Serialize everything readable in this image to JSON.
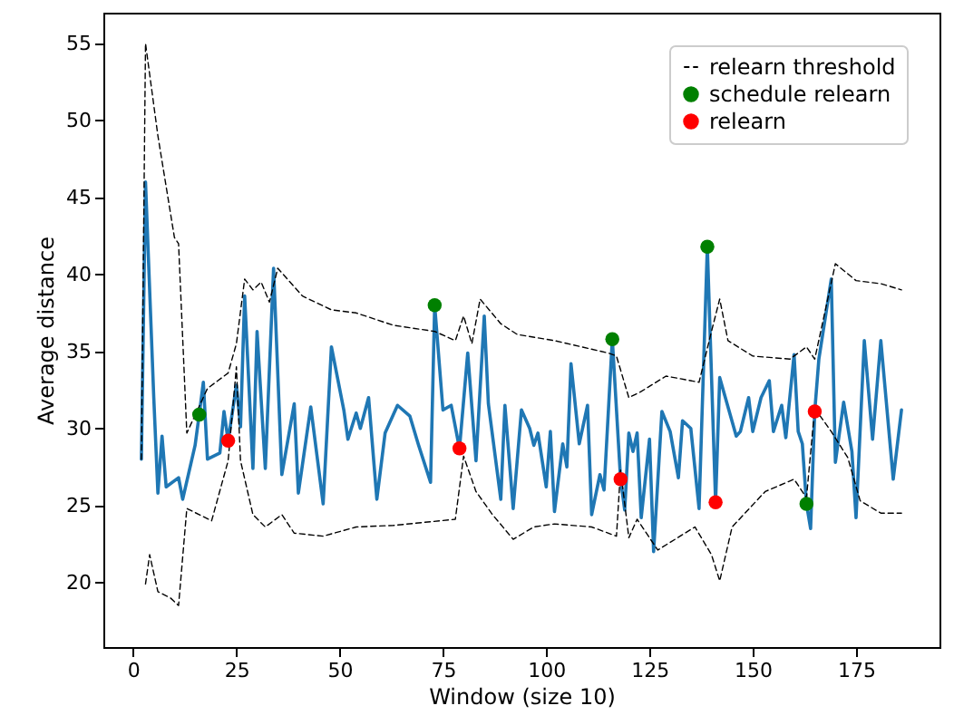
{
  "chart_data": {
    "type": "line",
    "xlabel": "Window (size 10)",
    "ylabel": "Average distance",
    "xlim": [
      -7.2,
      195.2
    ],
    "ylim": [
      15.8,
      57.0
    ],
    "xticks": [
      0,
      25,
      50,
      75,
      100,
      125,
      150,
      175
    ],
    "yticks": [
      20,
      25,
      30,
      35,
      40,
      45,
      50,
      55
    ],
    "grid": false,
    "legend": "top right",
    "series": [
      {
        "color": "#1f77b4",
        "line_style": "solid",
        "x": [
          2,
          3,
          5,
          6,
          7,
          8,
          11,
          12,
          15,
          16,
          17,
          18,
          21,
          22,
          23,
          25,
          26,
          27,
          29,
          30,
          32,
          34,
          36,
          39,
          40,
          43,
          46,
          48,
          51,
          52,
          54,
          55,
          57,
          59,
          61,
          64,
          67,
          69,
          72,
          73,
          75,
          77,
          79,
          81,
          83,
          85,
          86,
          89,
          90,
          92,
          94,
          96,
          97,
          98,
          100,
          101,
          102,
          104,
          105,
          106,
          108,
          110,
          111,
          113,
          114,
          116,
          118,
          119,
          120,
          121,
          122,
          123,
          125,
          126,
          128,
          130,
          132,
          133,
          135,
          137,
          139,
          141,
          142,
          144,
          146,
          147,
          149,
          150,
          152,
          154,
          155,
          157,
          158,
          160,
          161,
          162,
          163,
          164,
          165,
          166,
          169,
          170,
          172,
          174,
          175,
          177,
          179,
          181,
          184,
          186
        ],
        "values": [
          28,
          46,
          32,
          25.8,
          29.5,
          26.2,
          26.8,
          25.4,
          28.9,
          30.9,
          33.0,
          28.0,
          28.4,
          31.1,
          29.2,
          32.8,
          30.1,
          38.6,
          27.4,
          36.3,
          27.4,
          40.4,
          27.0,
          31.6,
          25.8,
          31.4,
          25.1,
          35.3,
          31.2,
          29.3,
          31.0,
          30.0,
          32.0,
          25.4,
          29.7,
          31.5,
          30.8,
          29.0,
          26.5,
          38.0,
          31.2,
          31.5,
          28.7,
          34.9,
          27.9,
          37.3,
          31.6,
          25.4,
          31.5,
          24.8,
          31.2,
          30.0,
          28.9,
          29.7,
          26.2,
          29.8,
          24.6,
          29.0,
          27.5,
          34.2,
          29.0,
          31.5,
          24.4,
          27.0,
          26.0,
          35.8,
          26.7,
          24.7,
          29.7,
          28.5,
          29.7,
          24.2,
          29.3,
          22.0,
          31.1,
          29.8,
          26.8,
          30.5,
          30.0,
          24.8,
          41.8,
          25.2,
          33.3,
          31.4,
          29.5,
          29.8,
          32.0,
          29.8,
          32.0,
          33.1,
          29.8,
          31.5,
          29.4,
          34.8,
          29.8,
          29.0,
          25.1,
          23.5,
          31.1,
          34.5,
          39.7,
          27.8,
          31.7,
          28.5,
          24.2,
          35.7,
          29.3,
          35.7,
          26.7,
          31.2
        ]
      },
      {
        "name": "relearn threshold",
        "color": "#000000",
        "line_style": "dashed",
        "x": [
          2,
          3,
          6,
          10,
          11,
          13,
          18,
          23,
          25,
          27,
          29,
          31,
          33,
          35,
          41,
          48,
          54,
          63,
          73,
          78,
          80,
          82,
          84,
          89,
          93,
          102,
          115,
          117,
          120,
          123,
          129,
          137,
          140,
          142,
          144,
          150,
          159,
          163,
          165,
          170,
          175,
          181,
          186
        ],
        "values": [
          28,
          55,
          49,
          42.4,
          42.0,
          29.7,
          32.6,
          33.6,
          35.5,
          39.7,
          39.0,
          39.5,
          38.2,
          40.4,
          38.6,
          37.7,
          37.5,
          36.7,
          36.3,
          35.7,
          37.3,
          35.5,
          38.4,
          36.8,
          36.1,
          35.7,
          34.9,
          34.7,
          32.0,
          32.4,
          33.4,
          33.0,
          36.3,
          38.4,
          35.7,
          34.7,
          34.5,
          35.3,
          34.5,
          40.7,
          39.6,
          39.4,
          39.0
        ]
      },
      {
        "color": "#000000",
        "line_style": "dashed",
        "x": [
          3,
          4,
          6,
          9,
          11,
          13,
          16,
          19,
          23,
          25,
          26,
          29,
          32,
          36,
          39,
          46,
          54,
          63,
          78,
          80,
          83,
          87,
          92,
          97,
          102,
          111,
          117,
          118,
          120,
          122,
          127,
          136,
          140,
          142,
          145,
          153,
          160,
          163,
          165,
          169,
          173,
          176,
          181,
          186
        ],
        "values": [
          19.9,
          21.8,
          19.4,
          19.0,
          18.5,
          24.8,
          24.4,
          24.0,
          27.9,
          34,
          27.9,
          24.4,
          23.6,
          24.4,
          23.2,
          23.0,
          23.6,
          23.7,
          24.1,
          28.2,
          25.9,
          24.4,
          22.8,
          23.6,
          23.8,
          23.6,
          23.0,
          27.3,
          22.9,
          24.1,
          22.1,
          23.6,
          21.8,
          20.1,
          23.6,
          25.9,
          26.7,
          25.5,
          31.3,
          29.8,
          28.1,
          25.3,
          24.5,
          24.5
        ]
      },
      {
        "name": "schedule relearn",
        "type": "scatter",
        "marker": "circle",
        "color": "#008000",
        "x": [
          16,
          73,
          116,
          139,
          163
        ],
        "values": [
          30.9,
          38.0,
          35.8,
          41.8,
          25.1
        ]
      },
      {
        "name": "relearn",
        "type": "scatter",
        "marker": "circle",
        "color": "#ff0000",
        "x": [
          23,
          79,
          118,
          141,
          165
        ],
        "values": [
          29.2,
          28.7,
          26.7,
          25.2,
          31.1
        ]
      }
    ]
  }
}
